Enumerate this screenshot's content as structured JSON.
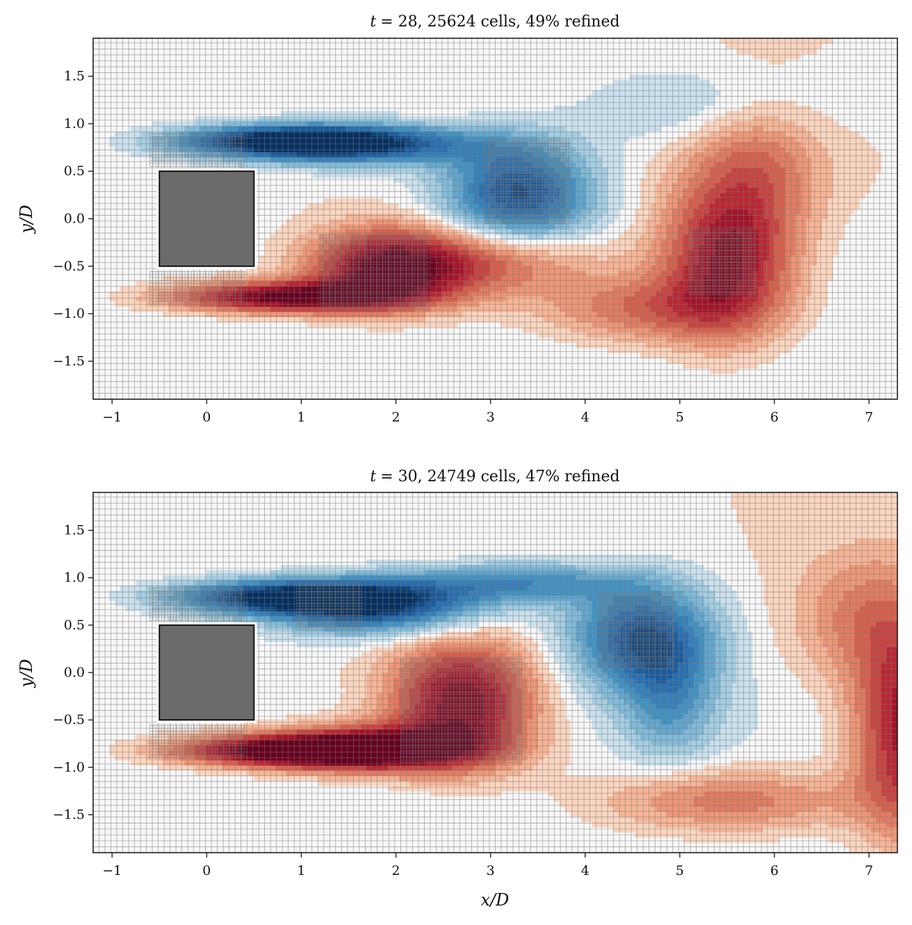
{
  "chart_data": [
    {
      "type": "heatmap",
      "title_prefix": "t",
      "title": "= 28, 25624 cells, 49% refined",
      "xlabel": "",
      "ylabel": "y/D",
      "xlim": [
        -1.2,
        7.3
      ],
      "ylim": [
        -1.9,
        1.9
      ],
      "xticks": [
        -1,
        0,
        1,
        2,
        3,
        4,
        5,
        6,
        7
      ],
      "xtick_labels": [
        "−1",
        "0",
        "1",
        "2",
        "3",
        "4",
        "5",
        "6",
        "7"
      ],
      "yticks": [
        1.5,
        1.0,
        0.5,
        0.0,
        -0.5,
        -1.0,
        -1.5
      ],
      "ytick_labels": [
        "1.5",
        "1.0",
        "0.5",
        "0.0",
        "−0.5",
        "−1.0",
        "−1.5"
      ],
      "obstacle": {
        "x": [
          -0.5,
          0.5
        ],
        "y": [
          -0.5,
          0.5
        ]
      },
      "colormap": "RdBu_r",
      "grid": "adaptive mesh overlay",
      "vortices": [
        {
          "x": 0.8,
          "y": 0.82,
          "strength": -1.0,
          "sx": 0.85,
          "sy": 0.12
        },
        {
          "x": 1.7,
          "y": 0.78,
          "strength": -0.7,
          "sx": 0.9,
          "sy": 0.16
        },
        {
          "x": 3.3,
          "y": 0.28,
          "strength": -0.9,
          "sx": 0.55,
          "sy": 0.38
        },
        {
          "x": 0.8,
          "y": -0.82,
          "strength": 1.0,
          "sx": 0.85,
          "sy": 0.12
        },
        {
          "x": 1.9,
          "y": -0.52,
          "strength": 0.95,
          "sx": 0.6,
          "sy": 0.3
        },
        {
          "x": 3.0,
          "y": -0.45,
          "strength": 0.5,
          "sx": 0.8,
          "sy": 0.25
        },
        {
          "x": 5.5,
          "y": -0.45,
          "strength": 0.85,
          "sx": 0.5,
          "sy": 0.55
        },
        {
          "x": 4.6,
          "y": -0.95,
          "strength": 0.45,
          "sx": 0.8,
          "sy": 0.25
        },
        {
          "x": 5.8,
          "y": 0.6,
          "strength": 0.4,
          "sx": 0.5,
          "sy": 0.55
        },
        {
          "x": 5.3,
          "y": 1.2,
          "strength": -0.25,
          "sx": 0.9,
          "sy": 0.3
        }
      ],
      "refined_regions": [
        {
          "x": [
            -0.6,
            0.4
          ],
          "y": [
            0.55,
            0.9
          ]
        },
        {
          "x": [
            -0.6,
            0.4
          ],
          "y": [
            -0.9,
            -0.55
          ]
        },
        {
          "x": [
            2.95,
            3.85
          ],
          "y": [
            -0.05,
            0.85
          ]
        },
        {
          "x": [
            1.2,
            2.35
          ],
          "y": [
            -0.95,
            -0.15
          ]
        },
        {
          "x": [
            5.1,
            5.8
          ],
          "y": [
            -0.8,
            -0.1
          ]
        }
      ]
    },
    {
      "type": "heatmap",
      "title_prefix": "t",
      "title": "= 30, 24749 cells, 47% refined",
      "xlabel": "x/D",
      "ylabel": "y/D",
      "xlim": [
        -1.2,
        7.3
      ],
      "ylim": [
        -1.9,
        1.9
      ],
      "xticks": [
        -1,
        0,
        1,
        2,
        3,
        4,
        5,
        6,
        7
      ],
      "xtick_labels": [
        "−1",
        "0",
        "1",
        "2",
        "3",
        "4",
        "5",
        "6",
        "7"
      ],
      "yticks": [
        1.5,
        1.0,
        0.5,
        0.0,
        -0.5,
        -1.0,
        -1.5
      ],
      "ytick_labels": [
        "1.5",
        "1.0",
        "0.5",
        "0.0",
        "−0.5",
        "−1.0",
        "−1.5"
      ],
      "obstacle": {
        "x": [
          -0.5,
          0.5
        ],
        "y": [
          -0.5,
          0.5
        ]
      },
      "colormap": "RdBu_r",
      "grid": "adaptive mesh overlay",
      "vortices": [
        {
          "x": 0.8,
          "y": 0.8,
          "strength": -1.0,
          "sx": 0.85,
          "sy": 0.13
        },
        {
          "x": 1.8,
          "y": 0.68,
          "strength": -0.85,
          "sx": 0.8,
          "sy": 0.2
        },
        {
          "x": 3.2,
          "y": 0.95,
          "strength": -0.55,
          "sx": 0.9,
          "sy": 0.15
        },
        {
          "x": 4.6,
          "y": 0.38,
          "strength": -0.85,
          "sx": 0.55,
          "sy": 0.4
        },
        {
          "x": 4.9,
          "y": -0.3,
          "strength": -0.4,
          "sx": 0.35,
          "sy": 0.45
        },
        {
          "x": 0.8,
          "y": -0.82,
          "strength": 1.0,
          "sx": 0.85,
          "sy": 0.12
        },
        {
          "x": 1.8,
          "y": -0.8,
          "strength": 0.9,
          "sx": 0.8,
          "sy": 0.18
        },
        {
          "x": 2.7,
          "y": -0.3,
          "strength": 0.95,
          "sx": 0.55,
          "sy": 0.45
        },
        {
          "x": 5.5,
          "y": -1.35,
          "strength": 0.45,
          "sx": 1.0,
          "sy": 0.25
        },
        {
          "x": 7.4,
          "y": -0.6,
          "strength": 0.85,
          "sx": 0.4,
          "sy": 0.8
        },
        {
          "x": 6.9,
          "y": 0.6,
          "strength": 0.3,
          "sx": 0.5,
          "sy": 0.5
        }
      ],
      "refined_regions": [
        {
          "x": [
            -0.6,
            0.4
          ],
          "y": [
            0.55,
            0.9
          ]
        },
        {
          "x": [
            -0.6,
            0.4
          ],
          "y": [
            -0.9,
            -0.55
          ]
        },
        {
          "x": [
            0.95,
            1.65
          ],
          "y": [
            0.45,
            0.95
          ]
        },
        {
          "x": [
            2.05,
            3.35
          ],
          "y": [
            -0.95,
            0.15
          ]
        },
        {
          "x": [
            4.15,
            4.95
          ],
          "y": [
            0.05,
            0.85
          ]
        }
      ]
    }
  ]
}
